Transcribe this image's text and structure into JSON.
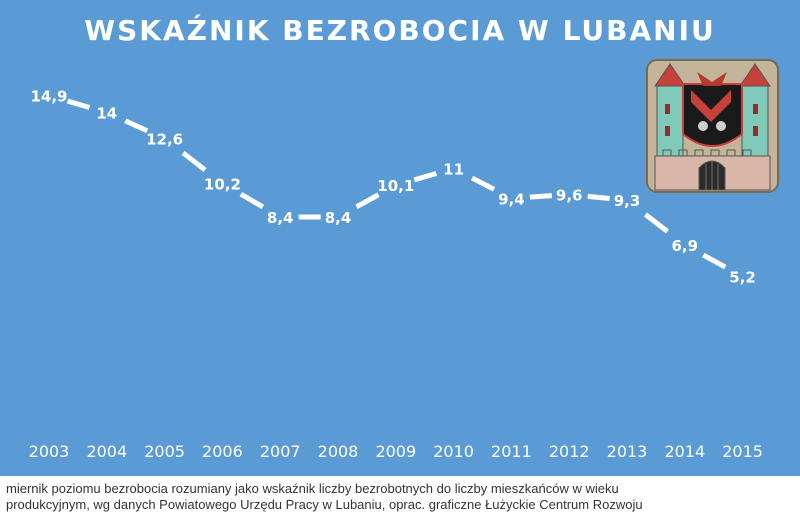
{
  "chart_data": {
    "type": "line",
    "title": "WSKAŹNIK BEZROBOCIA W LUBANIU",
    "categories": [
      "2003",
      "2004",
      "2005",
      "2006",
      "2007",
      "2008",
      "2009",
      "2010",
      "2011",
      "2012",
      "2013",
      "2014",
      "2015"
    ],
    "values": [
      14.9,
      14,
      12.6,
      10.2,
      8.4,
      8.4,
      10.1,
      11,
      9.4,
      9.6,
      9.3,
      6.9,
      5.2
    ],
    "value_labels": [
      "14,9",
      "14",
      "12,6",
      "10,2",
      "8,4",
      "8,4",
      "10,1",
      "11",
      "9,4",
      "9,6",
      "9,3",
      "6,9",
      "5,2"
    ],
    "xlabel": "",
    "ylabel": "",
    "grid": false,
    "line_style": "dashed",
    "colors": {
      "background": "#5b9bd5",
      "line": "#ffffff",
      "text": "#ffffff"
    }
  },
  "footer": {
    "line1": "miernik poziomu bezrobocia rozumiany jako wskaźnik liczby bezrobotnych do liczby mieszkańców w wieku",
    "line2": "produkcyjnym, wg danych Powiatowego Urzędu Pracy w Lubaniu, oprac. graficzne Łużyckie Centrum Rozwoju"
  },
  "icons": {
    "crest": "coat-of-arms-icon"
  }
}
